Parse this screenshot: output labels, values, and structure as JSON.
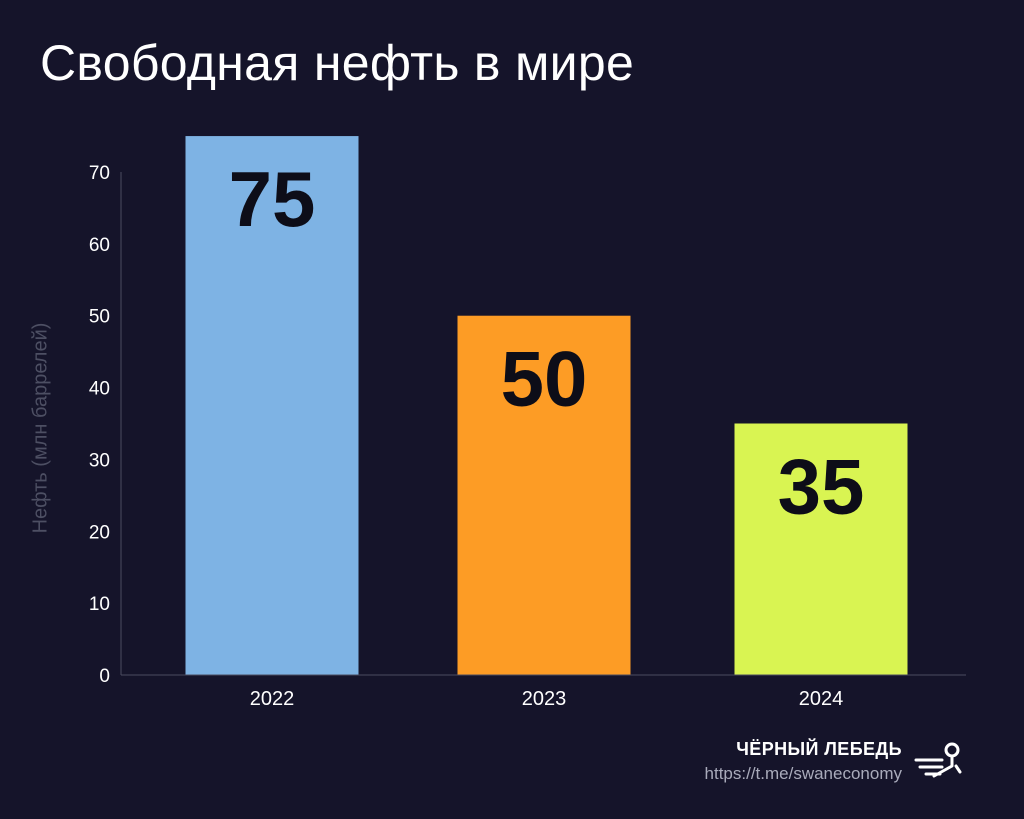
{
  "title": "Свободная нефть в мире",
  "brand": {
    "name": "ЧЁРНЫЙ ЛЕБЕДЬ",
    "url": "https://t.me/swaneconomy",
    "logo_icon": "swan-logo-icon"
  },
  "colors": {
    "background": "#15142a",
    "axis": "#4a4c60",
    "tick_text": "#ffffff",
    "bar_label": "#0d0d18"
  },
  "chart_data": {
    "type": "bar",
    "title": "Свободная нефть в мире",
    "ylabel": "Нефть (млн баррелей)",
    "xlabel": "",
    "categories": [
      "2022",
      "2023",
      "2024"
    ],
    "values": [
      75,
      50,
      35
    ],
    "data_labels": [
      "75",
      "50",
      "35"
    ],
    "bar_colors": [
      "#7eb3e4",
      "#fd9c25",
      "#d9f452"
    ],
    "y_ticks": [
      0,
      10,
      20,
      30,
      40,
      50,
      60,
      70
    ],
    "ylim": [
      0,
      70
    ],
    "grid": false,
    "legend": "none"
  }
}
